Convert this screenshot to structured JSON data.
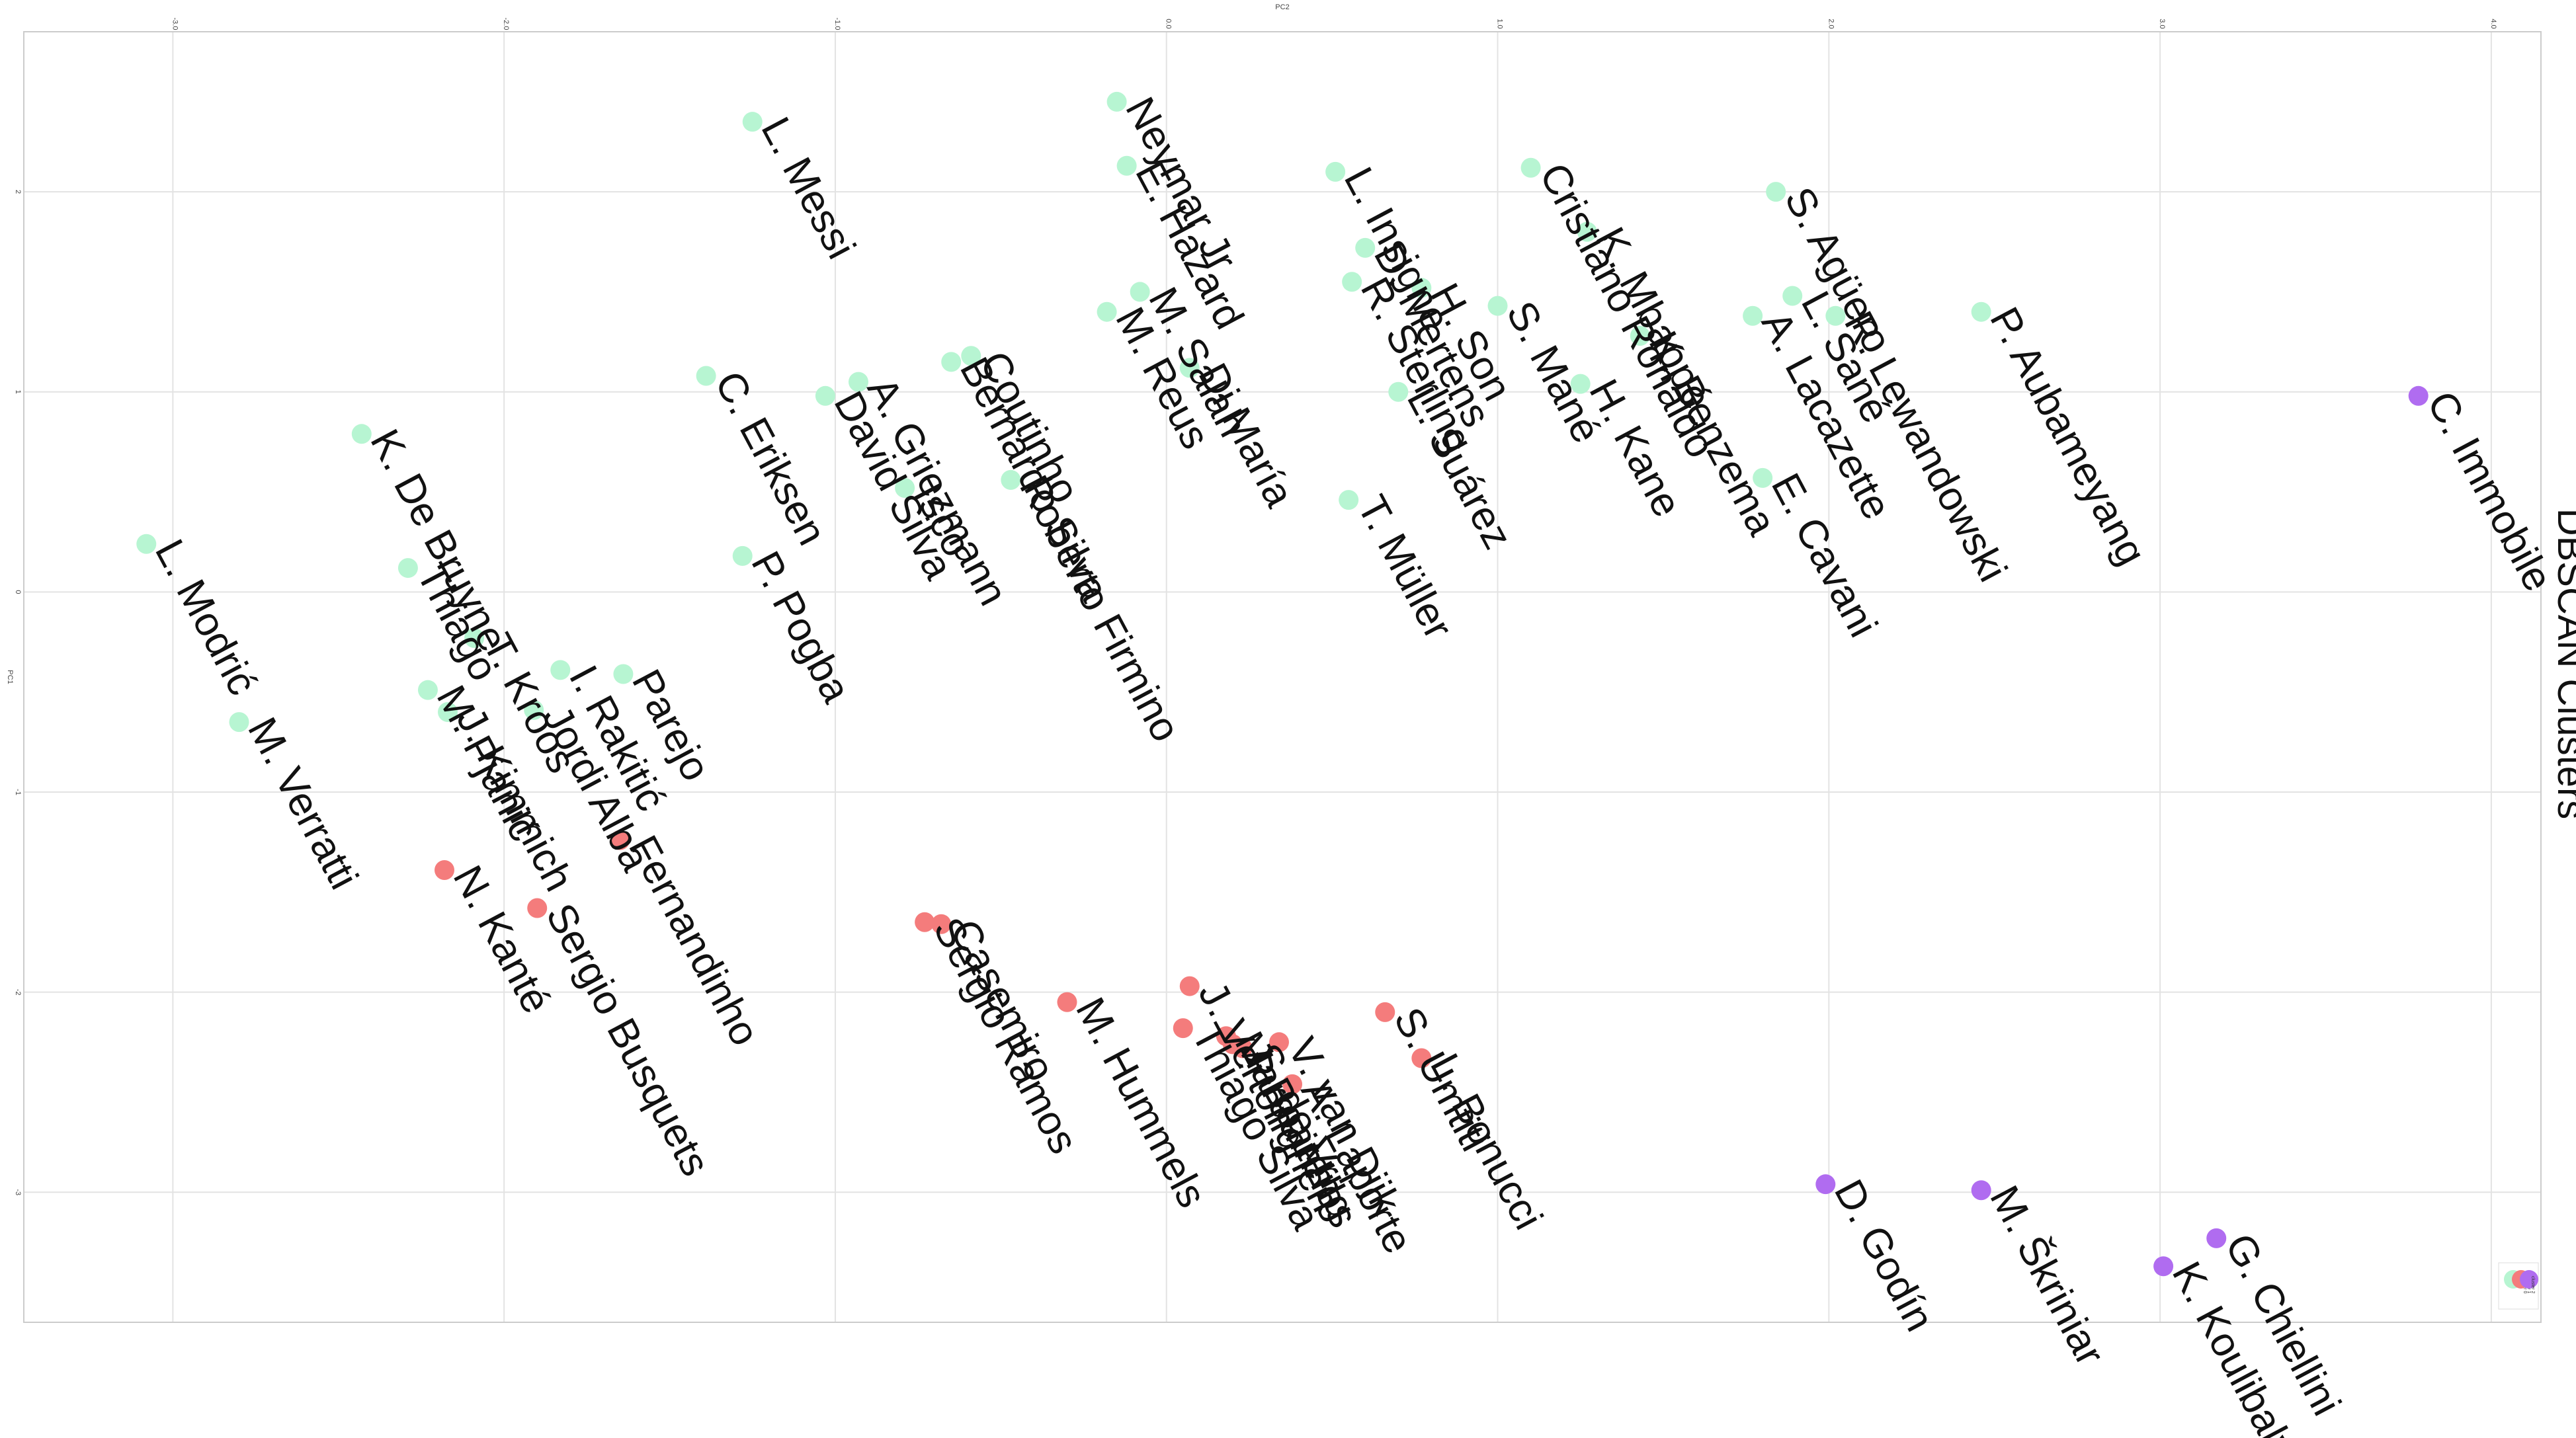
{
  "chart_data": {
    "type": "scatter",
    "title": "DBSCAN Clusters",
    "xlabel": "PC2",
    "ylabel": "PC1",
    "xlim": [
      -3.45,
      4.15
    ],
    "ylim": [
      -3.65,
      2.8
    ],
    "xticks": [
      -3.0,
      -2.0,
      -1.0,
      0.0,
      1.0,
      2.0,
      3.0,
      4.0
    ],
    "xtick_labels": [
      "-3.0",
      "-2.0",
      "-1.0",
      "0.0",
      "1.0",
      "2.0",
      "3.0",
      "4.0"
    ],
    "yticks": [
      -3,
      -2,
      -1,
      0,
      1,
      2
    ],
    "ytick_labels": [
      "-3",
      "-2",
      "-1",
      "0",
      "1",
      "2"
    ],
    "grid": true,
    "legend_position": "bottom-right",
    "series": [
      {
        "name": "cluster 0",
        "color": "#b7f5d2",
        "points": [
          {
            "label": "L. Messi",
            "x": -1.25,
            "y": 2.35
          },
          {
            "label": "Neymar Jr",
            "x": -0.15,
            "y": 2.45
          },
          {
            "label": "E. Hazard",
            "x": -0.12,
            "y": 2.13
          },
          {
            "label": "L. Insigne",
            "x": 0.51,
            "y": 2.1
          },
          {
            "label": "Cristiano Ronaldo",
            "x": 1.1,
            "y": 2.12
          },
          {
            "label": "S. Agüero",
            "x": 1.84,
            "y": 2.0
          },
          {
            "label": "K. Mbappé",
            "x": 1.27,
            "y": 1.8
          },
          {
            "label": "D. Mertens",
            "x": 0.6,
            "y": 1.72
          },
          {
            "label": "H. Son",
            "x": 0.77,
            "y": 1.52
          },
          {
            "label": "R. Sterling",
            "x": 0.56,
            "y": 1.55
          },
          {
            "label": "M. Salah",
            "x": -0.08,
            "y": 1.5
          },
          {
            "label": "M. Reus",
            "x": -0.18,
            "y": 1.4
          },
          {
            "label": "S. Mané",
            "x": 1.0,
            "y": 1.43
          },
          {
            "label": "L. Sané",
            "x": 1.89,
            "y": 1.48
          },
          {
            "label": "R. Lewandowski",
            "x": 2.02,
            "y": 1.38
          },
          {
            "label": "A. Lacazette",
            "x": 1.77,
            "y": 1.38
          },
          {
            "label": "P. Aubameyang",
            "x": 2.46,
            "y": 1.4
          },
          {
            "label": "K. Benzema",
            "x": 1.43,
            "y": 1.28
          },
          {
            "label": "Di María",
            "x": 0.07,
            "y": 1.12
          },
          {
            "label": "H. Kane",
            "x": 1.25,
            "y": 1.04
          },
          {
            "label": "L. Suárez",
            "x": 0.7,
            "y": 1.0
          },
          {
            "label": "Coutinho",
            "x": -0.59,
            "y": 1.18
          },
          {
            "label": "Bernardo Silva",
            "x": -0.65,
            "y": 1.15
          },
          {
            "label": "C. Eriksen",
            "x": -1.39,
            "y": 1.08
          },
          {
            "label": "A. Griezmann",
            "x": -0.93,
            "y": 1.05
          },
          {
            "label": "David Silva",
            "x": -1.03,
            "y": 0.98
          },
          {
            "label": "Isco",
            "x": -0.79,
            "y": 0.52
          },
          {
            "label": "Roberto Firmino",
            "x": -0.47,
            "y": 0.56
          },
          {
            "label": "E. Cavani",
            "x": 1.8,
            "y": 0.57
          },
          {
            "label": "T. Müller",
            "x": 0.55,
            "y": 0.46
          },
          {
            "label": "K. De Bruyne",
            "x": -2.43,
            "y": 0.79
          },
          {
            "label": "L. Modrić",
            "x": -3.08,
            "y": 0.24
          },
          {
            "label": "P. Pogba",
            "x": -1.28,
            "y": 0.18
          },
          {
            "label": "Thiago",
            "x": -2.29,
            "y": 0.12
          },
          {
            "label": "T. Kroos",
            "x": -2.09,
            "y": -0.23
          },
          {
            "label": "I. Rakitić",
            "x": -1.83,
            "y": -0.39
          },
          {
            "label": "Parejo",
            "x": -1.64,
            "y": -0.41
          },
          {
            "label": "M. Pjanić",
            "x": -2.23,
            "y": -0.49
          },
          {
            "label": "Jordi Alba",
            "x": -1.91,
            "y": -0.59
          },
          {
            "label": "J. Kimmich",
            "x": -2.17,
            "y": -0.6
          },
          {
            "label": "M. Verratti",
            "x": -2.8,
            "y": -0.65
          }
        ]
      },
      {
        "name": "cluster 1",
        "color": "#f47c7c",
        "points": [
          {
            "label": "Fernandinho",
            "x": -1.65,
            "y": -1.24
          },
          {
            "label": "N. Kanté",
            "x": -2.18,
            "y": -1.39
          },
          {
            "label": "Sergio Busquets",
            "x": -1.9,
            "y": -1.58
          },
          {
            "label": "Casemiro",
            "x": -0.68,
            "y": -1.66
          },
          {
            "label": "Sergio Ramos",
            "x": -0.73,
            "y": -1.65
          },
          {
            "label": "M. Hummels",
            "x": -0.3,
            "y": -2.05
          },
          {
            "label": "J. Vertonghen",
            "x": 0.07,
            "y": -1.97
          },
          {
            "label": "Thiago Silva",
            "x": 0.05,
            "y": -2.18
          },
          {
            "label": "Marquinhos",
            "x": 0.18,
            "y": -2.22
          },
          {
            "label": "J. Boateng",
            "x": 0.2,
            "y": -2.26
          },
          {
            "label": "S. de Vrij",
            "x": 0.23,
            "y": -2.28
          },
          {
            "label": "V. van Dijk",
            "x": 0.34,
            "y": -2.25
          },
          {
            "label": "A. Laporte",
            "x": 0.38,
            "y": -2.46
          },
          {
            "label": "S. Umtiti",
            "x": 0.66,
            "y": -2.1
          },
          {
            "label": "L. Bonucci",
            "x": 0.77,
            "y": -2.33
          }
        ]
      },
      {
        "name": "cluster 2",
        "color": "#b06cf0",
        "points": [
          {
            "label": "C. Immobile",
            "x": 3.78,
            "y": 0.98
          },
          {
            "label": "D. Godín",
            "x": 1.99,
            "y": -2.96
          },
          {
            "label": "M. Škriniar",
            "x": 2.46,
            "y": -2.99
          },
          {
            "label": "G. Chiellini",
            "x": 3.17,
            "y": -3.23
          },
          {
            "label": "K. Koulibaly",
            "x": 3.01,
            "y": -3.37
          }
        ]
      }
    ]
  }
}
